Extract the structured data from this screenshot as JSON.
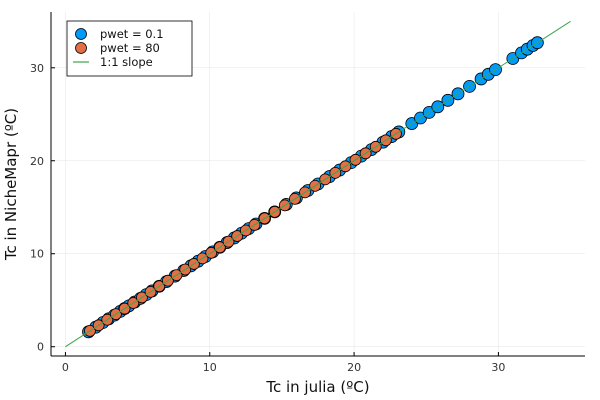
{
  "chart_data": {
    "type": "scatter",
    "xlabel": "Tc in julia (ºC)",
    "ylabel": "Tc in NicheMapr (ºC)",
    "xlim": [
      -1,
      36
    ],
    "ylim": [
      -1,
      36
    ],
    "xticks": [
      0,
      10,
      20,
      30
    ],
    "yticks": [
      0,
      10,
      20,
      30
    ],
    "grid": true,
    "legend_position": "top-left",
    "series": [
      {
        "name": "pwet = 0.1",
        "kind": "scatter",
        "color": "#009AFA",
        "x": [
          1.6,
          2.1,
          2.6,
          3.0,
          3.4,
          3.8,
          4.1,
          4.4,
          4.8,
          5.2,
          5.6,
          6.0,
          6.5,
          7.0,
          7.6,
          8.2,
          8.7,
          9.2,
          9.7,
          10.2,
          10.7,
          11.2,
          11.7,
          12.2,
          12.7,
          13.2,
          13.8,
          14.5,
          15.3,
          16.0,
          16.8,
          17.5,
          18.3,
          19.0,
          19.8,
          20.5,
          21.2,
          22.0,
          22.6,
          23.1,
          24.0,
          24.6,
          25.2,
          25.8,
          26.5,
          27.2,
          28.0,
          28.8,
          29.3,
          29.8,
          31.0,
          31.6,
          32.0,
          32.4,
          32.7
        ],
        "y": [
          1.6,
          2.1,
          2.6,
          3.0,
          3.4,
          3.8,
          4.1,
          4.4,
          4.8,
          5.2,
          5.6,
          6.0,
          6.5,
          7.0,
          7.6,
          8.2,
          8.7,
          9.2,
          9.7,
          10.2,
          10.7,
          11.2,
          11.7,
          12.2,
          12.7,
          13.2,
          13.8,
          14.5,
          15.3,
          16.0,
          16.8,
          17.5,
          18.3,
          19.0,
          19.8,
          20.5,
          21.2,
          22.0,
          22.6,
          23.1,
          24.0,
          24.6,
          25.2,
          25.8,
          26.5,
          27.2,
          28.0,
          28.8,
          29.3,
          29.8,
          31.0,
          31.6,
          32.0,
          32.4,
          32.7
        ]
      },
      {
        "name": "pwet = 80",
        "kind": "scatter",
        "color": "#E26F46",
        "x": [
          1.7,
          2.3,
          2.9,
          3.5,
          4.1,
          4.7,
          5.3,
          5.9,
          6.5,
          7.1,
          7.7,
          8.3,
          8.9,
          9.5,
          10.1,
          10.7,
          11.3,
          11.9,
          12.5,
          13.1,
          13.8,
          14.5,
          15.2,
          15.9,
          16.6,
          17.3,
          18.0,
          18.7,
          19.4,
          20.1,
          20.8,
          21.5,
          22.2,
          22.9
        ],
        "y": [
          1.7,
          2.3,
          2.9,
          3.5,
          4.1,
          4.7,
          5.3,
          5.9,
          6.5,
          7.1,
          7.7,
          8.3,
          8.9,
          9.5,
          10.1,
          10.7,
          11.3,
          11.9,
          12.5,
          13.1,
          13.8,
          14.5,
          15.2,
          15.9,
          16.6,
          17.3,
          18.0,
          18.7,
          19.4,
          20.1,
          20.8,
          21.5,
          22.2,
          22.9
        ]
      },
      {
        "name": "1:1 slope",
        "kind": "line",
        "color": "#3DA44D",
        "x": [
          0,
          35
        ],
        "y": [
          0,
          35
        ]
      }
    ]
  }
}
